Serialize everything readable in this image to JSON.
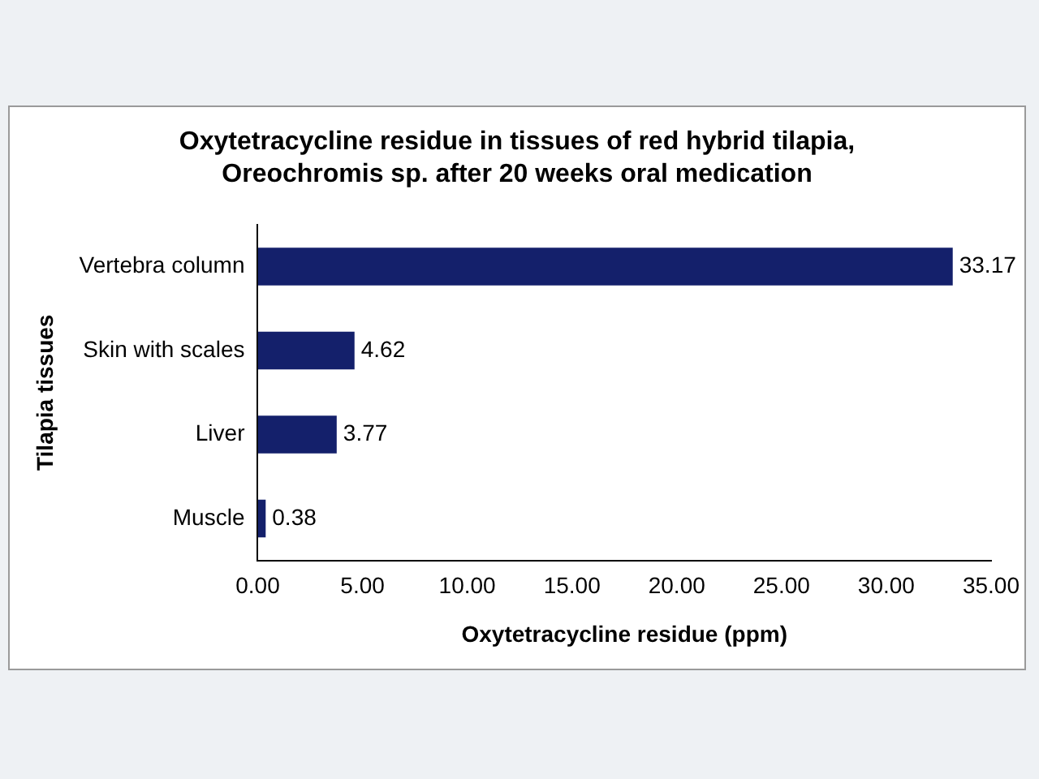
{
  "chart_data": {
    "type": "bar",
    "orientation": "horizontal",
    "title": "Oxytetracycline residue in tissues of red hybrid tilapia, Oreochromis sp. after 20 weeks oral medication",
    "xlabel": "Oxytetracycline residue (ppm)",
    "ylabel": "Tilapia tissues",
    "categories": [
      "Vertebra column",
      "Skin with scales",
      "Liver",
      "Muscle"
    ],
    "values": [
      33.17,
      4.62,
      3.77,
      0.38
    ],
    "color": "#14206b",
    "xlim": [
      0,
      35
    ],
    "xticks": [
      {
        "value": 0,
        "label": "0.00"
      },
      {
        "value": 5,
        "label": "5.00"
      },
      {
        "value": 10,
        "label": "10.00"
      },
      {
        "value": 15,
        "label": "15.00"
      },
      {
        "value": 20,
        "label": "20.00"
      },
      {
        "value": 25,
        "label": "25.00"
      },
      {
        "value": 30,
        "label": "30.00"
      },
      {
        "value": 35,
        "label": "35.00"
      }
    ],
    "data_labels": true,
    "grid": false,
    "legend": false
  }
}
